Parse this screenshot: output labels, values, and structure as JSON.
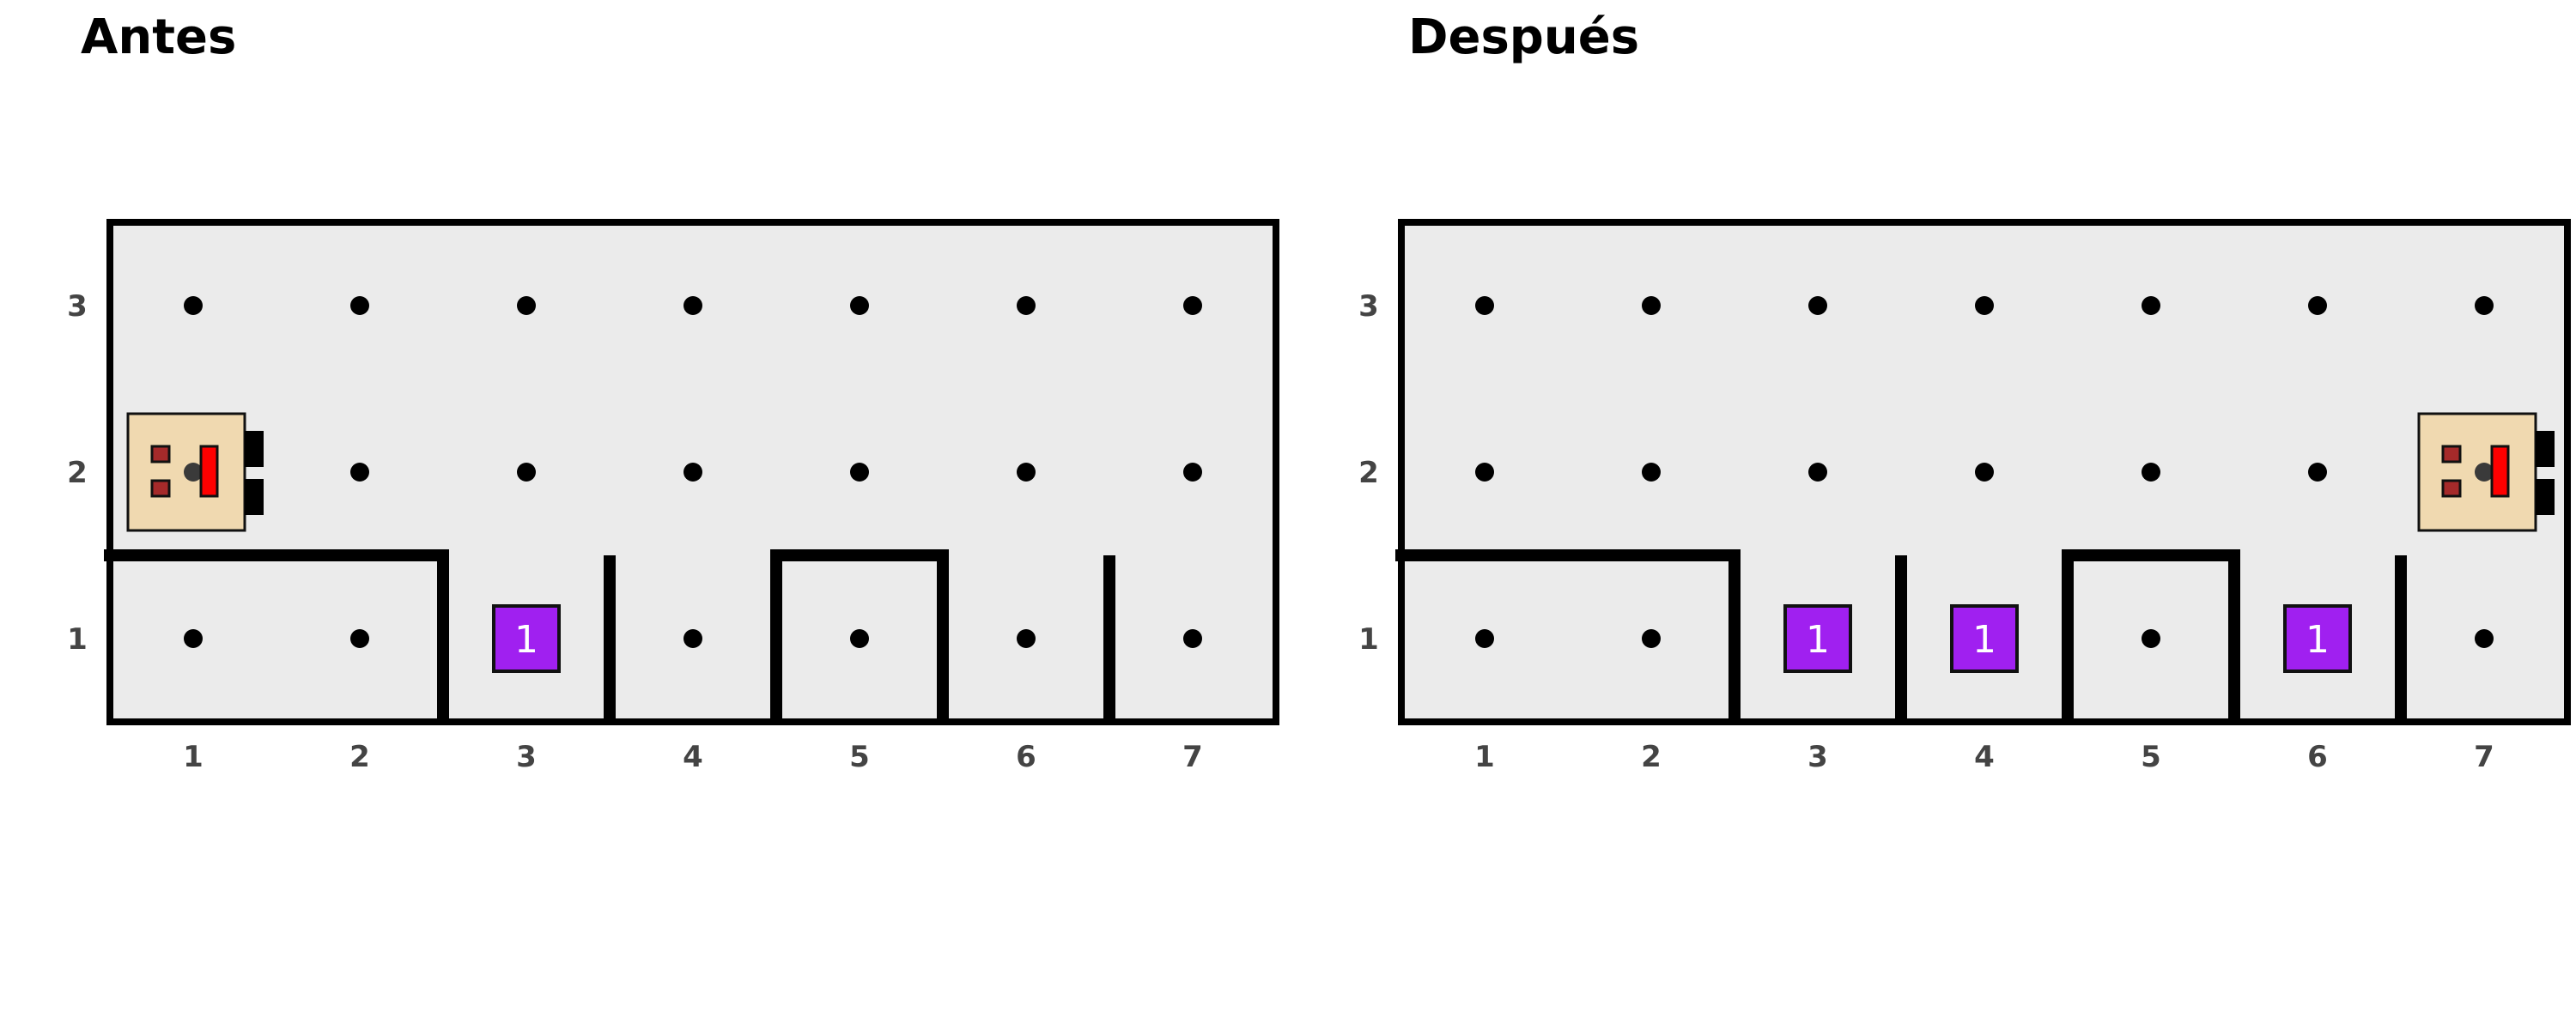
{
  "panels": [
    {
      "title": "Antes",
      "robot": {
        "x": 1,
        "y": 2,
        "facing": "east"
      },
      "markers": [
        {
          "x": 3,
          "y": 1,
          "count": "1"
        }
      ]
    },
    {
      "title": "Después",
      "robot": {
        "x": 7,
        "y": 2,
        "facing": "east"
      },
      "markers": [
        {
          "x": 3,
          "y": 1,
          "count": "1"
        },
        {
          "x": 4,
          "y": 1,
          "count": "1"
        },
        {
          "x": 6,
          "y": 1,
          "count": "1"
        }
      ]
    }
  ],
  "grid": {
    "columns": [
      "1",
      "2",
      "3",
      "4",
      "5",
      "6",
      "7"
    ],
    "rows": [
      "1",
      "2",
      "3"
    ],
    "walls": {
      "horizontal": [
        {
          "x": 1,
          "between_rows": [
            1,
            2
          ]
        },
        {
          "x": 2,
          "between_rows": [
            1,
            2
          ]
        },
        {
          "x": 5,
          "between_rows": [
            1,
            2
          ]
        }
      ],
      "vertical": [
        {
          "between_cols": [
            2,
            3
          ],
          "y": 1
        },
        {
          "between_cols": [
            3,
            4
          ],
          "y": 1
        },
        {
          "between_cols": [
            4,
            5
          ],
          "y": 1
        },
        {
          "between_cols": [
            5,
            6
          ],
          "y": 1
        },
        {
          "between_cols": [
            6,
            7
          ],
          "y": 1
        }
      ]
    }
  },
  "colors": {
    "background": "#ebebeb",
    "border": "#000000",
    "dot": "#000000",
    "marker": "#a020f0",
    "robot_body": "#f0d9b0",
    "robot_accent": "#ff0000",
    "robot_eye": "#a52a2a",
    "tick_text": "#444444"
  }
}
